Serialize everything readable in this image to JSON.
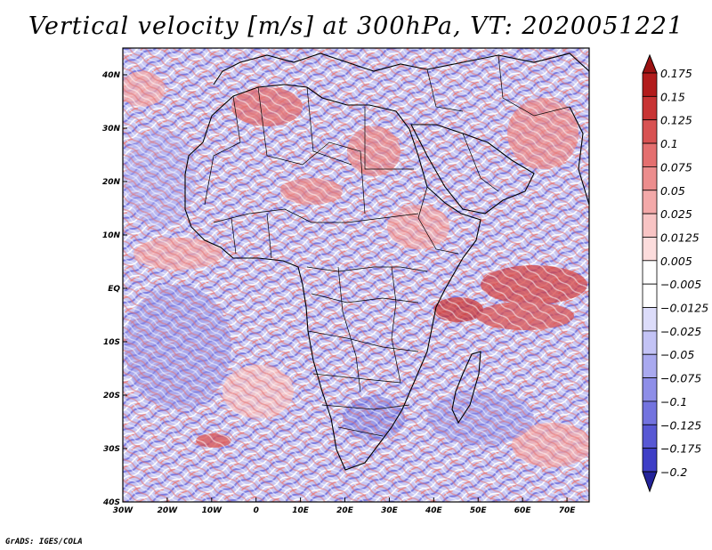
{
  "title": "Vertical velocity [m/s] at 300hPa, VT: 2020051221",
  "footer": "GrADS: IGES/COLA",
  "map": {
    "lon_range": [
      -30,
      75
    ],
    "lat_range": [
      -40,
      45
    ],
    "lon_ticks": [
      {
        "value": -30,
        "label": "30W"
      },
      {
        "value": -20,
        "label": "20W"
      },
      {
        "value": -10,
        "label": "10W"
      },
      {
        "value": 0,
        "label": "0"
      },
      {
        "value": 10,
        "label": "10E"
      },
      {
        "value": 20,
        "label": "20E"
      },
      {
        "value": 30,
        "label": "30E"
      },
      {
        "value": 40,
        "label": "40E"
      },
      {
        "value": 50,
        "label": "50E"
      },
      {
        "value": 60,
        "label": "60E"
      },
      {
        "value": 70,
        "label": "70E"
      }
    ],
    "lat_ticks": [
      {
        "value": 40,
        "label": "40N"
      },
      {
        "value": 30,
        "label": "30N"
      },
      {
        "value": 20,
        "label": "20N"
      },
      {
        "value": 10,
        "label": "10N"
      },
      {
        "value": 0,
        "label": "EQ"
      },
      {
        "value": -10,
        "label": "10S"
      },
      {
        "value": -20,
        "label": "20S"
      },
      {
        "value": -30,
        "label": "30S"
      },
      {
        "value": -40,
        "label": "40S"
      }
    ]
  },
  "colorbar": {
    "levels": [
      {
        "label": "0.175",
        "color": "#b21c1c"
      },
      {
        "label": "0.15",
        "color": "#c83434"
      },
      {
        "label": "0.125",
        "color": "#d85252"
      },
      {
        "label": "0.1",
        "color": "#e46f6f"
      },
      {
        "label": "0.075",
        "color": "#ec8d8d"
      },
      {
        "label": "0.05",
        "color": "#f3a9a9"
      },
      {
        "label": "0.025",
        "color": "#f8c4c4"
      },
      {
        "label": "0.0125",
        "color": "#fcdcdc"
      },
      {
        "label": "0.005",
        "color": "#ffffff"
      },
      {
        "label": "-0.005",
        "color": "#ffffff"
      },
      {
        "label": "-0.0125",
        "color": "#dcdcfa"
      },
      {
        "label": "-0.025",
        "color": "#c3c3f5"
      },
      {
        "label": "-0.05",
        "color": "#a9a9ef"
      },
      {
        "label": "-0.075",
        "color": "#8e8ee8"
      },
      {
        "label": "-0.1",
        "color": "#7373df"
      },
      {
        "label": "-0.125",
        "color": "#5858d4"
      },
      {
        "label": "-0.175",
        "color": "#3e3ec6"
      },
      {
        "label": "-0.2",
        "color": "#2a2ab0"
      }
    ],
    "top_color": "#9b1212",
    "bottom_color": "#23239a"
  },
  "colors": {
    "land_outline": "#000000",
    "background_blue": "#b5b5ee",
    "pattern_red": "#e98a8a",
    "pattern_blue": "#7a7ae0"
  }
}
